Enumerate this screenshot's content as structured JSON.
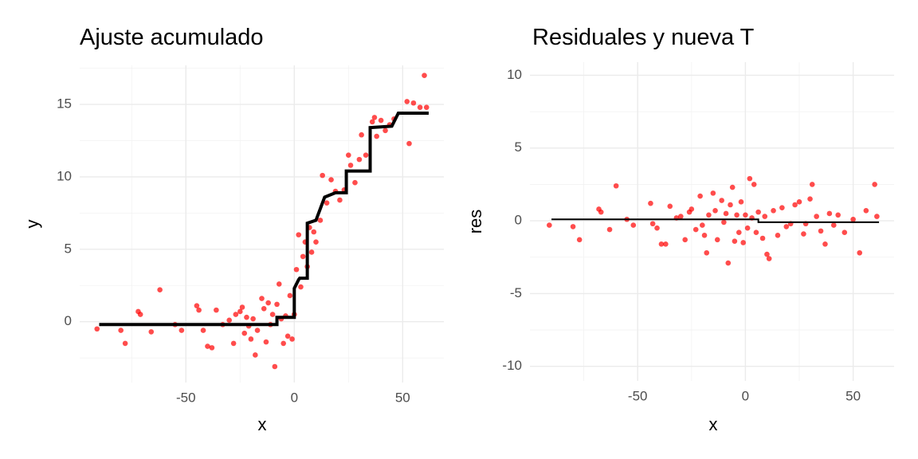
{
  "chart_data": [
    {
      "type": "scatter",
      "title": "Ajuste acumulado",
      "xlabel": "x",
      "ylabel": "y",
      "xlim": [
        -99,
        69
      ],
      "ylim": [
        -4.2,
        17.7
      ],
      "xticks": [
        -50,
        0,
        50
      ],
      "yticks": [
        0,
        5,
        10,
        15
      ],
      "grid": true,
      "series": [
        {
          "type": "scatter",
          "color": "#ff0000",
          "x": [
            -91,
            -80,
            -78,
            -72,
            -71,
            -66,
            -62,
            -55,
            -52,
            -45,
            -44,
            -42,
            -40,
            -38,
            -36,
            -33,
            -30,
            -28,
            -27,
            -25,
            -24,
            -23,
            -22,
            -21,
            -20,
            -19,
            -18,
            -17,
            -15,
            -14,
            -13,
            -12,
            -11,
            -10,
            -9,
            -8,
            -7,
            -6,
            -5,
            -4,
            -3,
            -2,
            -1,
            0,
            1,
            2,
            3,
            4,
            5,
            6,
            7,
            8,
            9,
            10,
            12,
            13,
            15,
            17,
            19,
            21,
            23,
            25,
            26,
            28,
            30,
            31,
            33,
            36,
            37,
            38,
            40,
            42,
            44,
            46,
            52,
            53,
            55,
            58,
            60,
            61
          ],
          "values": [
            -0.5,
            -0.6,
            -1.5,
            0.7,
            0.5,
            -0.7,
            2.2,
            -0.2,
            -0.6,
            1.1,
            0.8,
            -0.6,
            -1.7,
            -1.8,
            0.8,
            -0.2,
            0.1,
            -1.5,
            0.5,
            0.7,
            1.0,
            -0.8,
            0.3,
            -0.3,
            -1.2,
            0.2,
            -2.3,
            -0.6,
            1.6,
            0.9,
            -1.4,
            1.3,
            -0.2,
            0.5,
            -3.1,
            1.2,
            2.6,
            0.2,
            -1.5,
            0.4,
            -1.0,
            1.8,
            -1.2,
            0.5,
            3.6,
            6.0,
            2.4,
            4.5,
            5.5,
            3.8,
            6.5,
            4.8,
            6.2,
            5.5,
            7.0,
            10.1,
            8.2,
            9.8,
            9.0,
            8.4,
            9.1,
            11.5,
            10.8,
            9.6,
            11.2,
            12.9,
            11.5,
            13.8,
            14.1,
            12.8,
            13.9,
            13.2,
            13.6,
            14.0,
            15.2,
            12.3,
            15.1,
            14.8,
            17.0,
            14.8
          ]
        },
        {
          "type": "line",
          "color": "#000000",
          "x": [
            -90,
            -8,
            -8,
            0,
            0,
            1,
            2,
            2.5,
            6,
            6,
            10,
            12,
            14,
            19,
            24,
            24,
            35,
            35,
            45,
            48,
            62
          ],
          "values": [
            -0.2,
            -0.2,
            0.3,
            0.3,
            2.3,
            2.6,
            2.9,
            3,
            3,
            6.8,
            7,
            7.8,
            8.6,
            8.9,
            8.9,
            10.4,
            10.4,
            13.4,
            13.5,
            14.4,
            14.4
          ]
        }
      ]
    },
    {
      "type": "scatter",
      "title": "Residuales y nueva T",
      "xlabel": "x",
      "ylabel": "res",
      "xlim": [
        -100,
        69
      ],
      "ylim": [
        -11,
        10.9
      ],
      "xticks": [
        -50,
        0,
        50
      ],
      "yticks": [
        10,
        5,
        0,
        -5,
        -10
      ],
      "grid": true,
      "series": [
        {
          "type": "scatter",
          "color": "#ff0000",
          "x": [
            -91,
            -80,
            -77,
            -68,
            -67,
            -63,
            -60,
            -55,
            -52,
            -44,
            -43,
            -41,
            -39,
            -37,
            -35,
            -32,
            -30,
            -28,
            -26,
            -25,
            -23,
            -21,
            -20,
            -19,
            -18,
            -17,
            -15,
            -14,
            -13,
            -11,
            -10,
            -9,
            -8,
            -7,
            -6,
            -5,
            -4,
            -3,
            -2,
            -1,
            0,
            1,
            2,
            3,
            4,
            5,
            6,
            8,
            9,
            10,
            11,
            13,
            15,
            17,
            19,
            21,
            23,
            25,
            27,
            28,
            30,
            31,
            33,
            35,
            37,
            39,
            41,
            43,
            46,
            50,
            53,
            56,
            60,
            61
          ],
          "values": [
            -0.3,
            -0.4,
            -1.3,
            0.8,
            0.6,
            -0.6,
            2.4,
            0.1,
            -0.3,
            1.2,
            -0.2,
            -0.5,
            -1.6,
            -1.6,
            1.0,
            0.2,
            0.3,
            -1.3,
            0.6,
            0.8,
            -0.6,
            1.7,
            -0.3,
            -1.0,
            -2.2,
            0.4,
            1.9,
            0.7,
            -1.3,
            1.4,
            -0.1,
            0.5,
            -2.9,
            1.1,
            2.3,
            -1.4,
            0.4,
            -0.8,
            1.3,
            -1.5,
            0.4,
            -0.5,
            2.9,
            0.2,
            2.5,
            -0.8,
            0.6,
            -1.2,
            0.3,
            -2.3,
            -2.6,
            0.7,
            -1.0,
            0.9,
            -0.4,
            -0.2,
            1.1,
            1.3,
            -0.9,
            -0.2,
            1.5,
            2.5,
            0.3,
            -0.7,
            -1.6,
            0.5,
            -0.3,
            0.4,
            -0.8,
            0.1,
            -2.2,
            0.7,
            2.5,
            0.3
          ]
        },
        {
          "type": "line",
          "color": "#000000",
          "x": [
            -90,
            6,
            6,
            62
          ],
          "values": [
            0.1,
            0.1,
            -0.1,
            -0.1
          ]
        }
      ]
    }
  ]
}
